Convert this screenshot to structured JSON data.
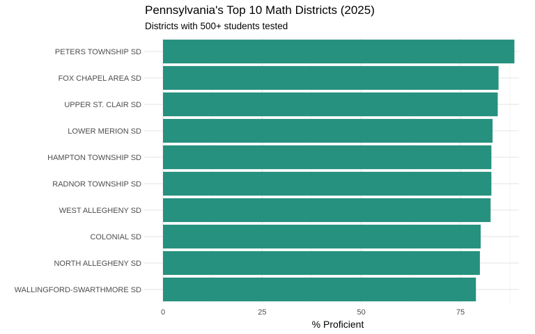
{
  "chart_data": {
    "type": "bar",
    "orientation": "horizontal",
    "title": "Pennsylvania's Top 10 Math Districts (2025)",
    "subtitle": "Districts with 500+ students tested",
    "xlabel": "% Proficient",
    "ylabel": "",
    "xlim": [
      0,
      90
    ],
    "xticks": [
      0,
      25,
      50,
      75
    ],
    "categories": [
      "PETERS TOWNSHIP SD",
      "FOX CHAPEL AREA SD",
      "UPPER ST. CLAIR SD",
      "LOWER MERION SD",
      "HAMPTON TOWNSHIP SD",
      "RADNOR TOWNSHIP SD",
      "WEST ALLEGHENY SD",
      "COLONIAL SD",
      "NORTH ALLEGHENY SD",
      "WALLINGFORD-SWARTHMORE SD"
    ],
    "values": [
      88.6,
      84.6,
      84.4,
      83.1,
      82.8,
      82.8,
      82.6,
      80.1,
      79.9,
      78.9
    ],
    "bar_color": "#26917E",
    "grid": true,
    "legend": "none"
  }
}
